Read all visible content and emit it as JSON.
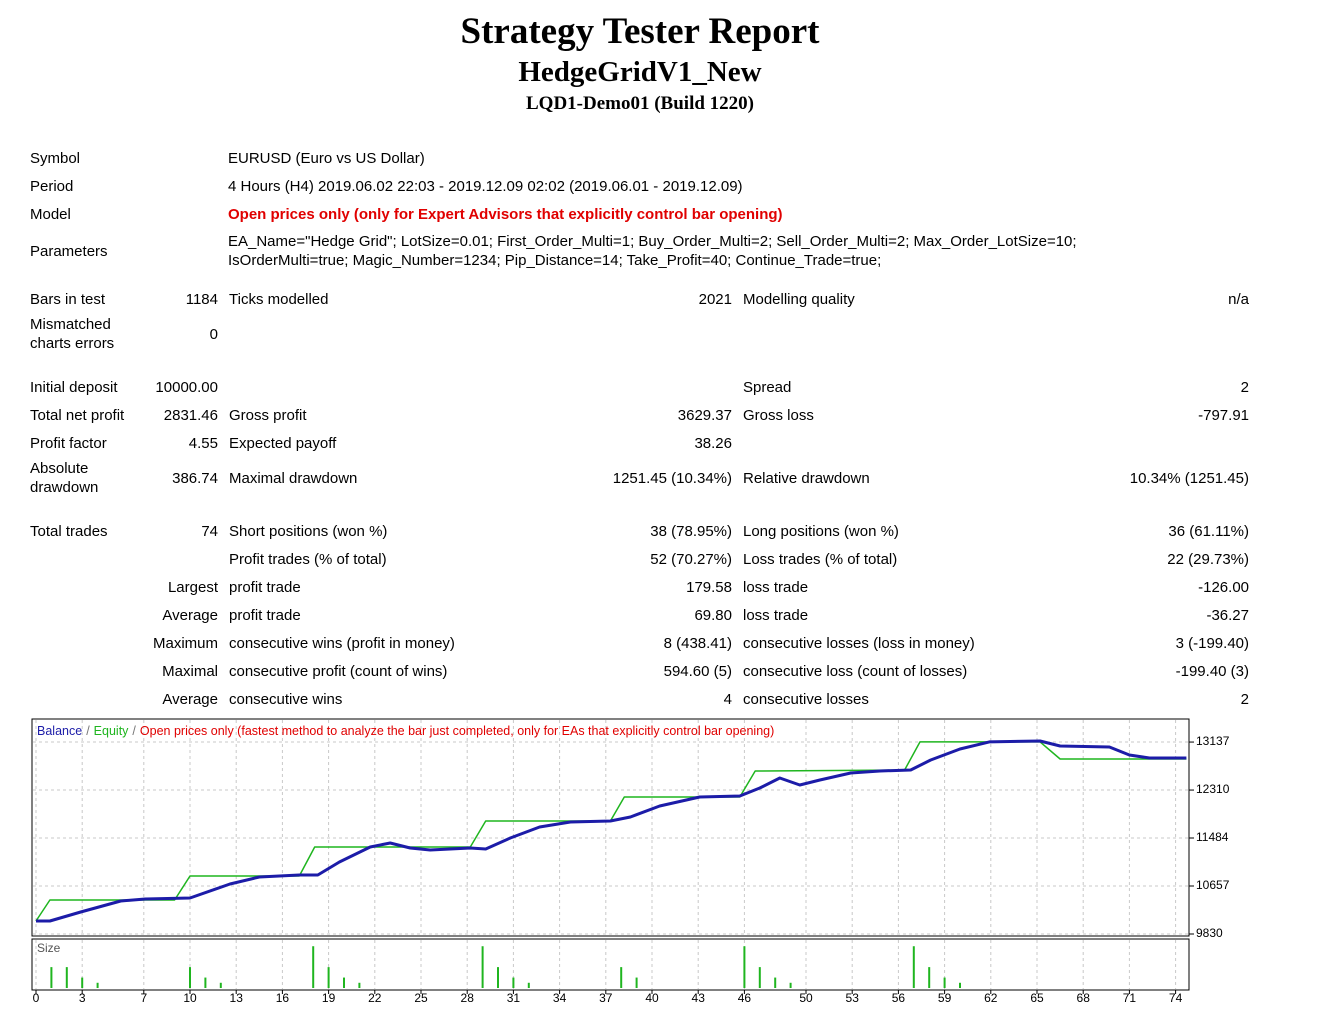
{
  "header": {
    "title": "Strategy Tester Report",
    "subtitle": "HedgeGridV1_New",
    "build": "LQD1-Demo01 (Build 1220)"
  },
  "info": [
    {
      "label": "Symbol",
      "value": [
        "EURUSD (Euro vs US Dollar)"
      ]
    },
    {
      "label": "Period",
      "value": [
        "4 Hours (H4) 2019.06.02 22:03 - 2019.12.09 02:02 (2019.06.01 - 2019.12.09)"
      ]
    },
    {
      "label": "Model",
      "value": [
        "Open prices only (only for Expert Advisors that explicitly control bar opening)"
      ],
      "highlight": true
    },
    {
      "label": "Parameters",
      "value": [
        "EA_Name=\"Hedge Grid\"; LotSize=0.01; First_Order_Multi=1; Buy_Order_Multi=2; Sell_Order_Multi=2; Max_Order_LotSize=10;",
        "IsOrderMulti=true; Magic_Number=1234; Pip_Distance=14; Take_Profit=40; Continue_Trade=true;"
      ]
    }
  ],
  "stats": [
    [
      [
        "Bars in test",
        "1184",
        "Ticks modelled",
        "2021",
        "Modelling quality",
        "n/a"
      ],
      [
        "Mismatched charts errors",
        "0",
        null,
        null,
        null,
        null
      ]
    ],
    [
      [
        "Initial deposit",
        "10000.00",
        null,
        null,
        "Spread",
        "2"
      ],
      [
        "Total net profit",
        "2831.46",
        "Gross profit",
        "3629.37",
        "Gross loss",
        "-797.91"
      ],
      [
        "Profit factor",
        "4.55",
        "Expected payoff",
        "38.26",
        null,
        null
      ],
      [
        "Absolute drawdown",
        "386.74",
        "Maximal drawdown",
        "1251.45 (10.34%)",
        "Relative drawdown",
        "10.34% (1251.45)"
      ]
    ],
    [
      [
        "Total trades",
        "74",
        "Short positions (won %)",
        "38 (78.95%)",
        "Long positions (won %)",
        "36 (61.11%)"
      ],
      [
        null,
        null,
        "Profit trades (% of total)",
        "52 (70.27%)",
        "Loss trades (% of total)",
        "22 (29.73%)"
      ],
      [
        null,
        "Largest",
        "profit trade",
        "179.58",
        "loss trade",
        "-126.00"
      ],
      [
        null,
        "Average",
        "profit trade",
        "69.80",
        "loss trade",
        "-36.27"
      ],
      [
        null,
        "Maximum",
        "consecutive wins (profit in money)",
        "8 (438.41)",
        "consecutive losses (loss in money)",
        "3 (-199.40)"
      ],
      [
        null,
        "Maximal",
        "consecutive profit (count of wins)",
        "594.60 (5)",
        "consecutive loss (count of losses)",
        "-199.40 (3)"
      ],
      [
        null,
        "Average",
        "consecutive wins",
        "4",
        "consecutive losses",
        "2"
      ]
    ]
  ],
  "chart_data": {
    "type": "line",
    "note": "Open prices only (fastest method to analyze the bar just completed, only for EAs that explicitly control bar opening)",
    "legend_separator": "/",
    "grid": true,
    "xlim": [
      0,
      75
    ],
    "ylim": [
      9830,
      13517
    ],
    "xticks": [
      0,
      3,
      7,
      10,
      13,
      16,
      19,
      22,
      25,
      28,
      31,
      34,
      37,
      40,
      43,
      46,
      50,
      53,
      56,
      59,
      62,
      65,
      68,
      71,
      74
    ],
    "yticks": [
      13137,
      12310,
      11484,
      10657,
      9830
    ],
    "series": [
      {
        "name": "Balance",
        "color": "#1c1ca8",
        "x": [
          0,
          0.9,
          2.9,
          5.5,
          7.1,
          10.0,
          12.6,
          14.5,
          17.1,
          18.3,
          19.7,
          21.7,
          23.0,
          24.3,
          25.6,
          28.2,
          29.2,
          30.8,
          32.7,
          34.7,
          37.3,
          38.6,
          40.5,
          43.1,
          45.7,
          47.0,
          48.3,
          49.6,
          50.9,
          52.9,
          54.8,
          56.8,
          58.1,
          60.0,
          61.9,
          65.2,
          66.5,
          69.7,
          71.0,
          72.3,
          74.7
        ],
        "values": [
          10054,
          10054,
          10209,
          10399,
          10433,
          10450,
          10692,
          10812,
          10847,
          10847,
          11071,
          11329,
          11398,
          11312,
          11277,
          11312,
          11295,
          11484,
          11674,
          11760,
          11777,
          11846,
          12035,
          12190,
          12208,
          12346,
          12518,
          12397,
          12483,
          12604,
          12638,
          12656,
          12828,
          13018,
          13139,
          13155,
          13069,
          13052,
          12914,
          12862,
          12862
        ]
      },
      {
        "name": "Equity",
        "color": "#1fb51f",
        "x": [
          0,
          0.9,
          9.0,
          10.0,
          17.1,
          18.1,
          28.2,
          29.2,
          37.3,
          38.2,
          45.7,
          46.7,
          56.4,
          57.4,
          65.2,
          66.5,
          74.7
        ],
        "values": [
          10054,
          10416,
          10416,
          10829,
          10829,
          11329,
          11329,
          11777,
          11777,
          12190,
          12190,
          12638,
          12656,
          13139,
          13139,
          12845,
          12845
        ]
      }
    ],
    "size": {
      "name": "Size",
      "color": "#1fb51f",
      "ylim": [
        0,
        0.09
      ],
      "x": [
        1,
        2,
        3,
        4,
        10,
        11,
        12,
        18,
        19,
        20,
        21,
        29,
        30,
        31,
        32,
        38,
        39,
        46,
        47,
        48,
        49,
        57,
        58,
        59,
        60
      ],
      "values": [
        0.04,
        0.04,
        0.02,
        0.01,
        0.04,
        0.02,
        0.01,
        0.08,
        0.04,
        0.02,
        0.01,
        0.08,
        0.04,
        0.02,
        0.01,
        0.04,
        0.02,
        0.08,
        0.04,
        0.02,
        0.01,
        0.08,
        0.04,
        0.02,
        0.01
      ]
    }
  }
}
